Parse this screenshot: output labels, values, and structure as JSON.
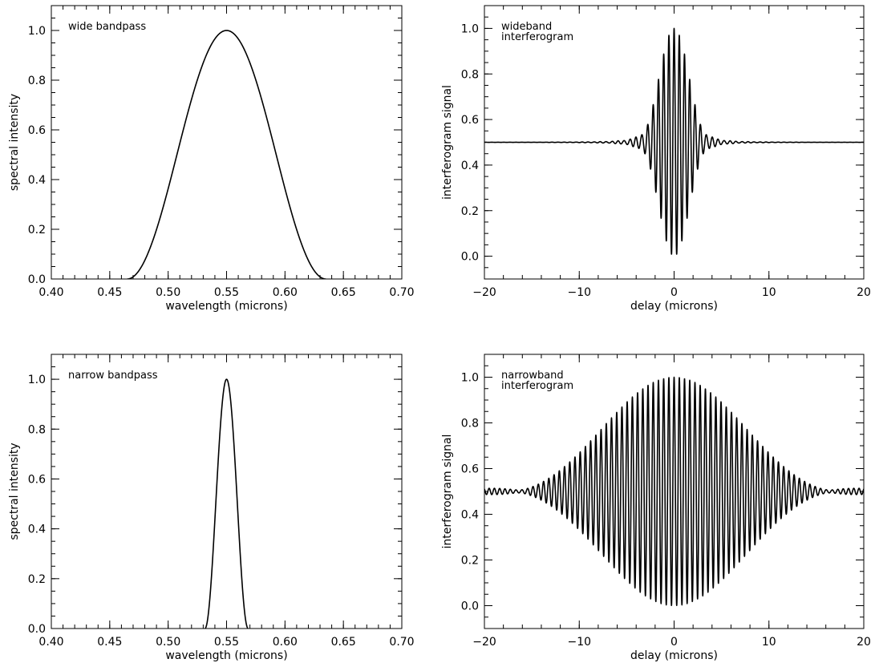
{
  "style": {
    "line_color": "#000000",
    "background": "#ffffff"
  },
  "chart_data": [
    {
      "id": "wide-bandpass",
      "type": "line",
      "annotation": "wide bandpass",
      "xlabel": "wavelength (microns)",
      "ylabel": "spectral intensity",
      "xlim": [
        0.4,
        0.7
      ],
      "ylim": [
        0.0,
        1.1
      ],
      "xticks": [
        0.4,
        0.45,
        0.5,
        0.55,
        0.6,
        0.65,
        0.7
      ],
      "xtick_labels": [
        "0.40",
        "0.45",
        "0.50",
        "0.55",
        "0.60",
        "0.65",
        "0.70"
      ],
      "yticks": [
        0.0,
        0.2,
        0.4,
        0.6,
        0.8,
        1.0
      ],
      "ytick_labels": [
        "0.0",
        "0.2",
        "0.4",
        "0.6",
        "0.8",
        "1.0"
      ],
      "x_minor_step": 0.01,
      "y_minor_step": 0.05,
      "curve": {
        "kind": "cosine_bandpass",
        "center": 0.55,
        "half_width": 0.085,
        "peak": 1.0
      }
    },
    {
      "id": "wideband-interferogram",
      "type": "line",
      "annotation": [
        "wideband",
        "interferogram"
      ],
      "xlabel": "delay (microns)",
      "ylabel": "interferogram signal",
      "xlim": [
        -20,
        20
      ],
      "ylim": [
        -0.1,
        1.1
      ],
      "xticks": [
        -20,
        -10,
        0,
        10,
        20
      ],
      "xtick_labels": [
        "−20",
        "−10",
        "0",
        "10",
        "20"
      ],
      "yticks": [
        0.0,
        0.2,
        0.4,
        0.6,
        0.8,
        1.0
      ],
      "ytick_labels": [
        "0.0",
        "0.2",
        "0.4",
        "0.6",
        "0.8",
        "1.0"
      ],
      "x_minor_step": 2,
      "y_minor_step": 0.05,
      "curve": {
        "kind": "interferogram",
        "center_wavelength": 0.55,
        "half_width": 0.085,
        "baseline": 0.5
      }
    },
    {
      "id": "narrow-bandpass",
      "type": "line",
      "annotation": "narrow bandpass",
      "xlabel": "wavelength (microns)",
      "ylabel": "spectral intensity",
      "xlim": [
        0.4,
        0.7
      ],
      "ylim": [
        0.0,
        1.1
      ],
      "xticks": [
        0.4,
        0.45,
        0.5,
        0.55,
        0.6,
        0.65,
        0.7
      ],
      "xtick_labels": [
        "0.40",
        "0.45",
        "0.50",
        "0.55",
        "0.60",
        "0.65",
        "0.70"
      ],
      "yticks": [
        0.0,
        0.2,
        0.4,
        0.6,
        0.8,
        1.0
      ],
      "ytick_labels": [
        "0.0",
        "0.2",
        "0.4",
        "0.6",
        "0.8",
        "1.0"
      ],
      "x_minor_step": 0.01,
      "y_minor_step": 0.05,
      "curve": {
        "kind": "cosine_bandpass",
        "center": 0.55,
        "half_width": 0.0185,
        "peak": 1.0
      }
    },
    {
      "id": "narrowband-interferogram",
      "type": "line",
      "annotation": [
        "narrowband",
        "interferogram"
      ],
      "xlabel": "delay (microns)",
      "ylabel": "interferogram signal",
      "xlim": [
        -20,
        20
      ],
      "ylim": [
        -0.1,
        1.1
      ],
      "xticks": [
        -20,
        -10,
        0,
        10,
        20
      ],
      "xtick_labels": [
        "−20",
        "−10",
        "0",
        "10",
        "20"
      ],
      "yticks": [
        0.0,
        0.2,
        0.4,
        0.6,
        0.8,
        1.0
      ],
      "ytick_labels": [
        "0.0",
        "0.2",
        "0.4",
        "0.6",
        "0.8",
        "1.0"
      ],
      "x_minor_step": 2,
      "y_minor_step": 0.05,
      "curve": {
        "kind": "interferogram",
        "center_wavelength": 0.55,
        "half_width": 0.0185,
        "baseline": 0.5
      }
    }
  ]
}
